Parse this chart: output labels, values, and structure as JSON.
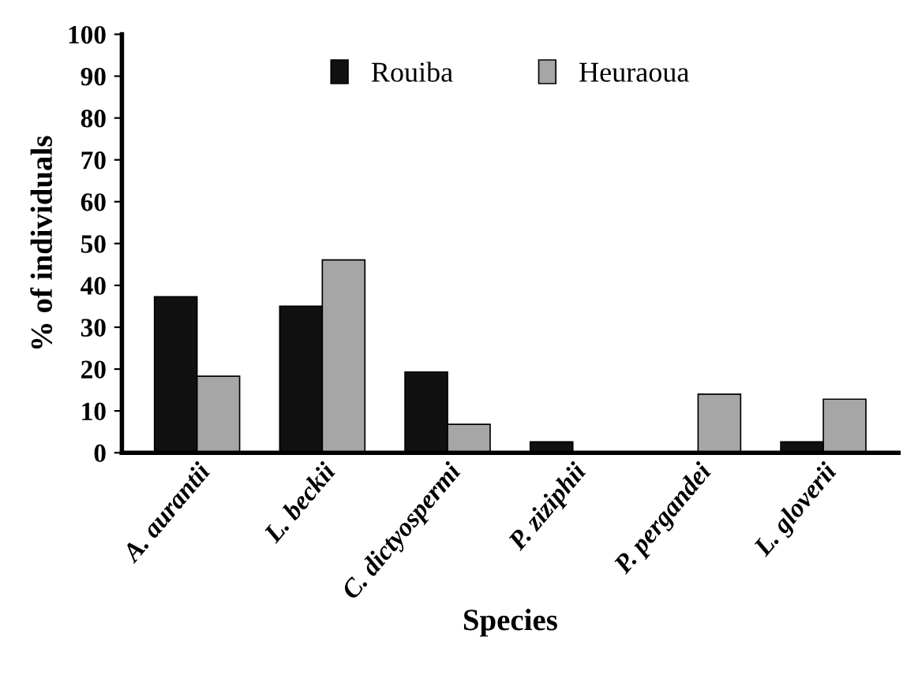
{
  "chart_data": {
    "type": "bar",
    "xlabel": "Species",
    "ylabel": "% of individuals",
    "categories": [
      "A. aurantii",
      "L. beckii",
      "C. dictyospermi",
      "P. ziziphii",
      "P. pergandei",
      "L. gloverii"
    ],
    "series": [
      {
        "name": "Rouiba",
        "color": "#111111",
        "values": [
          37.3,
          35.0,
          19.3,
          2.6,
          null,
          2.6
        ]
      },
      {
        "name": "Heuraoua",
        "color": "#a6a6a6",
        "values": [
          18.3,
          46.1,
          6.8,
          null,
          14.0,
          12.8
        ]
      }
    ],
    "ylim": [
      0,
      100
    ],
    "yticks": [
      0,
      10,
      20,
      30,
      40,
      50,
      60,
      70,
      80,
      90,
      100
    ],
    "grid": false,
    "legend": "top"
  }
}
